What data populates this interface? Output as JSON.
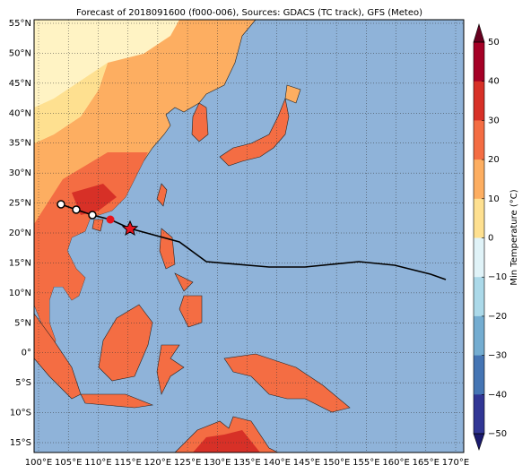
{
  "title": "Forecast of 2018091600 (f000-006), Sources: GDACS (TC track), GFS (Meteo)",
  "lat_labels": [
    "55°N",
    "50°N",
    "45°N",
    "40°N",
    "35°N",
    "30°N",
    "25°N",
    "20°N",
    "15°N",
    "10°N",
    "5°N",
    "0°",
    "5°S",
    "10°S",
    "15°S"
  ],
  "lon_labels": [
    "100°E",
    "105°E",
    "110°E",
    "115°E",
    "120°E",
    "125°E",
    "130°E",
    "135°E",
    "140°E",
    "145°E",
    "150°E",
    "155°E",
    "160°E",
    "165°E",
    "170°E"
  ],
  "colorbar": {
    "label": "Min Temperature (°C)",
    "ticks": [
      "50",
      "40",
      "30",
      "20",
      "10",
      "0",
      "−10",
      "−20",
      "−30",
      "−40",
      "−50"
    ]
  }
}
